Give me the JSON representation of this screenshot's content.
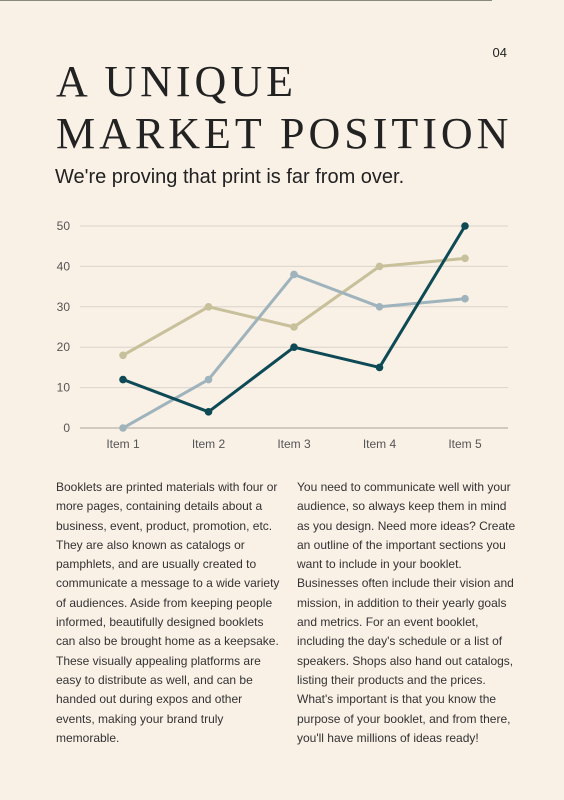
{
  "page_number": "04",
  "title_lines": [
    "A UNIQUE",
    "MARKET POSITION"
  ],
  "subtitle": "We're proving that print is far from over.",
  "colors": {
    "background": "#f9f0e6",
    "series_tan": "#c8c09a",
    "series_blue": "#9fb3bc",
    "series_teal": "#0d4a55",
    "grid": "#d9d4cc"
  },
  "chart_data": {
    "type": "line",
    "categories": [
      "Item 1",
      "Item 2",
      "Item 3",
      "Item 4",
      "Item 5"
    ],
    "ylim": [
      0,
      50
    ],
    "yticks": [
      0,
      10,
      20,
      30,
      40,
      50
    ],
    "grid": true,
    "series": [
      {
        "values": [
          18,
          30,
          25,
          40,
          42
        ],
        "color": "#c8c09a"
      },
      {
        "values": [
          0,
          12,
          38,
          30,
          32
        ],
        "color": "#9fb3bc"
      },
      {
        "values": [
          12,
          4,
          20,
          15,
          50
        ],
        "color": "#0d4a55"
      }
    ]
  },
  "body": {
    "left": "Booklets are printed materials with four or more pages, containing details about a business, event, product, promotion, etc. They are also known as catalogs or pamphlets, and are usually created to communicate a message to a wide variety of audiences. Aside from keeping people informed, beautifully designed booklets can also be brought home as a keepsake. These visually appealing platforms are easy to distribute as well, and can be handed out during expos and other events, making your brand truly memorable.",
    "right": "You need to communicate well with your audience, so always keep them in mind as you design. Need more ideas? Create an outline of the important sections you want to include in your booklet. Businesses often include their vision and mission, in addition to their yearly goals and metrics. For an event booklet, including the day's schedule or a list of speakers. Shops also hand out catalogs, listing their products and the prices. What's important is that you know the purpose of your booklet, and from there, you'll have millions of ideas ready!"
  }
}
